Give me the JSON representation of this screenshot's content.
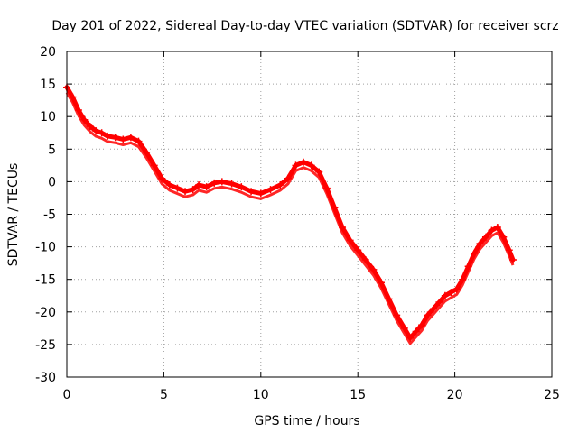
{
  "chart_data": {
    "type": "scatter",
    "title": "Day 201 of 2022, Sidereal Day-to-day VTEC variation (SDTVAR) for receiver scrz",
    "xlabel": "GPS time / hours",
    "ylabel": "SDTVAR / TECUs",
    "xlim": [
      0,
      25
    ],
    "ylim": [
      -30,
      20
    ],
    "xticks": [
      0,
      5,
      10,
      15,
      20,
      25
    ],
    "yticks": [
      -30,
      -25,
      -20,
      -15,
      -10,
      -5,
      0,
      5,
      10,
      15,
      20
    ],
    "grid": true,
    "color": "#ff0000",
    "series": [
      {
        "name": "SDTVAR",
        "x": [
          0.0,
          0.3,
          0.6,
          0.9,
          1.2,
          1.5,
          1.8,
          2.1,
          2.5,
          2.9,
          3.3,
          3.7,
          4.1,
          4.5,
          4.9,
          5.3,
          5.7,
          6.1,
          6.5,
          6.8,
          7.2,
          7.6,
          8.0,
          8.5,
          9.0,
          9.5,
          10.0,
          10.5,
          11.0,
          11.4,
          11.8,
          12.2,
          12.6,
          13.0,
          13.4,
          13.8,
          14.2,
          14.6,
          15.0,
          15.4,
          15.8,
          16.2,
          16.6,
          17.0,
          17.4,
          17.7,
          18.0,
          18.3,
          18.6,
          18.9,
          19.2,
          19.5,
          19.8,
          20.1,
          20.4,
          20.7,
          21.0,
          21.3,
          21.6,
          21.9,
          22.2,
          22.5,
          22.8,
          23.0
        ],
        "y": [
          14.5,
          13.0,
          11.0,
          9.5,
          8.5,
          7.8,
          7.5,
          7.0,
          6.8,
          6.5,
          6.8,
          6.2,
          4.5,
          2.5,
          0.5,
          -0.5,
          -1.0,
          -1.5,
          -1.2,
          -0.5,
          -0.8,
          -0.2,
          0.0,
          -0.3,
          -0.8,
          -1.5,
          -1.8,
          -1.2,
          -0.5,
          0.5,
          2.5,
          3.0,
          2.5,
          1.5,
          -1.0,
          -4.0,
          -7.0,
          -9.0,
          -10.5,
          -12.0,
          -13.5,
          -15.5,
          -18.0,
          -20.5,
          -22.5,
          -24.0,
          -23.0,
          -22.0,
          -20.5,
          -19.5,
          -18.5,
          -17.5,
          -17.0,
          -16.5,
          -15.0,
          -13.0,
          -11.0,
          -9.5,
          -8.5,
          -7.5,
          -7.0,
          -8.5,
          -10.5,
          -12.0
        ]
      }
    ]
  }
}
